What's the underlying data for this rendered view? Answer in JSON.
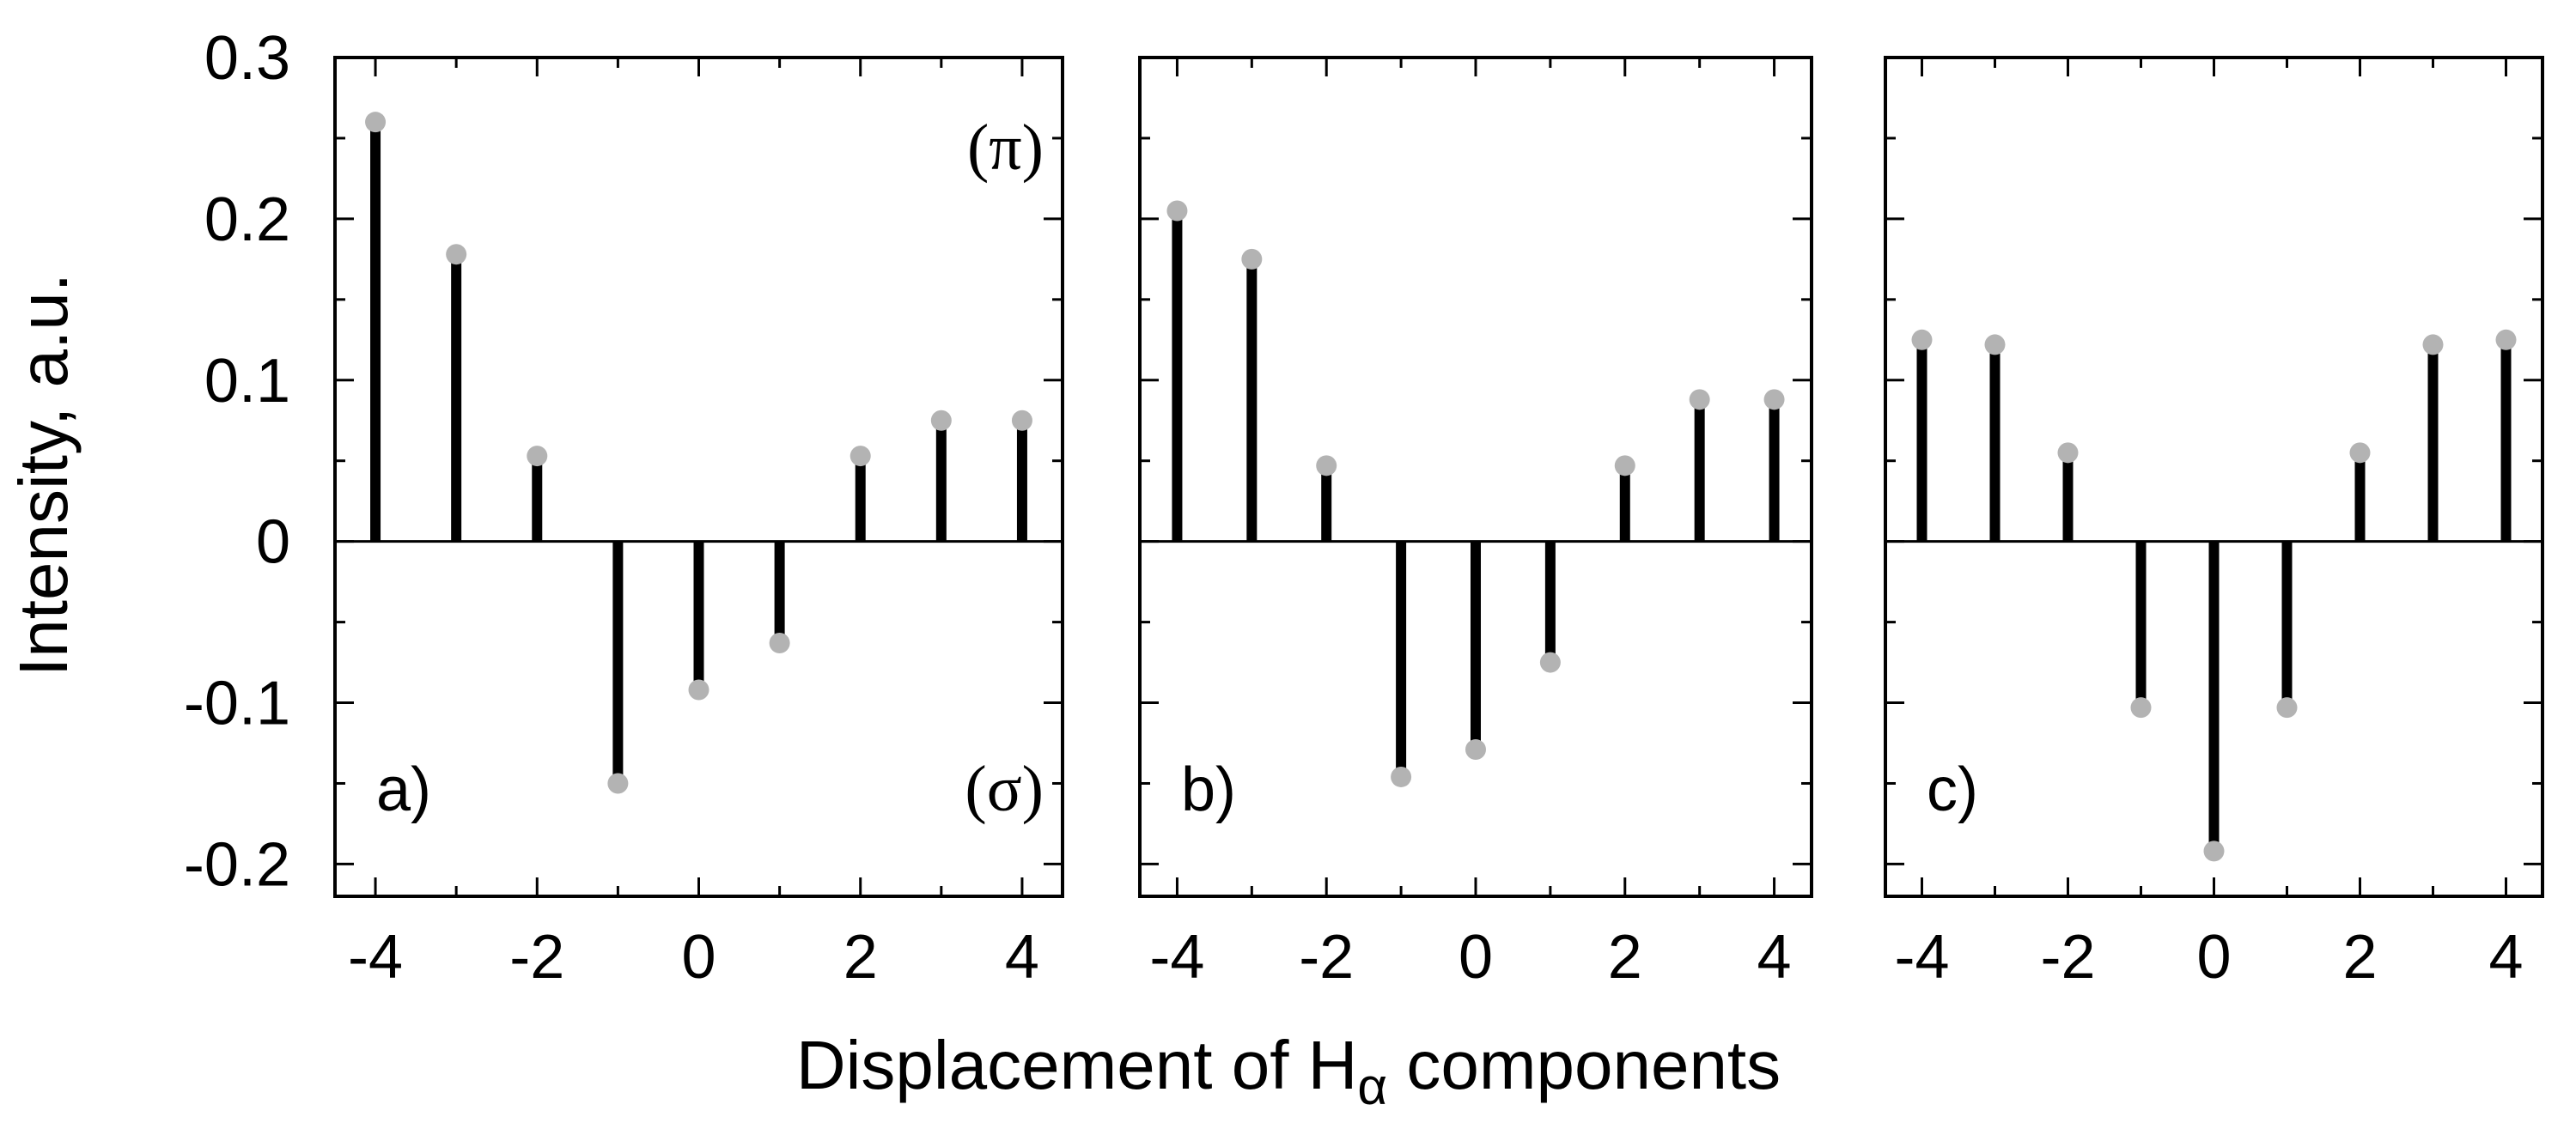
{
  "chart_data": {
    "type": "bar",
    "subtype": "stem",
    "xlabel": {
      "prefix": "Displacement of H",
      "subscript": "α",
      "suffix": " components"
    },
    "ylabel": "Intensity, a.u.",
    "ylim": [
      -0.22,
      0.3
    ],
    "xlim": [
      -4.5,
      4.5
    ],
    "y_ticks": [
      {
        "value": 0.3,
        "label": "0.3"
      },
      {
        "value": 0.2,
        "label": "0.2"
      },
      {
        "value": 0.1,
        "label": "0.1"
      },
      {
        "value": 0,
        "label": "0"
      },
      {
        "value": -0.1,
        "label": "-0.1"
      },
      {
        "value": -0.2,
        "label": "-0.2"
      }
    ],
    "y_minor_ticks": [
      0.25,
      0.15,
      0.05,
      -0.05,
      -0.15
    ],
    "x_ticks": [
      {
        "value": -4,
        "label": "-4"
      },
      {
        "value": -2,
        "label": "-2"
      },
      {
        "value": 0,
        "label": "0"
      },
      {
        "value": 2,
        "label": "2"
      },
      {
        "value": 4,
        "label": "4"
      }
    ],
    "x_minor_ticks": [
      -3,
      -1,
      1,
      3
    ],
    "stem_color": "#000000",
    "marker_color": "#b3b3b3",
    "panels": [
      {
        "label": "a)",
        "top_annotation": "(π)",
        "bottom_annotation": "(σ)",
        "x": [
          -4,
          -3,
          -2,
          -1,
          0,
          1,
          2,
          3,
          4
        ],
        "values": [
          0.26,
          0.178,
          0.053,
          -0.15,
          -0.092,
          -0.063,
          0.053,
          0.075,
          0.075
        ]
      },
      {
        "label": "b)",
        "top_annotation": "",
        "bottom_annotation": "",
        "x": [
          -4,
          -3,
          -2,
          -1,
          0,
          1,
          2,
          3,
          4
        ],
        "values": [
          0.205,
          0.175,
          0.047,
          -0.146,
          -0.129,
          -0.075,
          0.047,
          0.088,
          0.088
        ]
      },
      {
        "label": "c)",
        "top_annotation": "",
        "bottom_annotation": "",
        "x": [
          -4,
          -3,
          -2,
          -1,
          0,
          1,
          2,
          3,
          4
        ],
        "values": [
          0.125,
          0.122,
          0.055,
          -0.103,
          -0.192,
          -0.103,
          0.055,
          0.122,
          0.125
        ]
      }
    ]
  }
}
